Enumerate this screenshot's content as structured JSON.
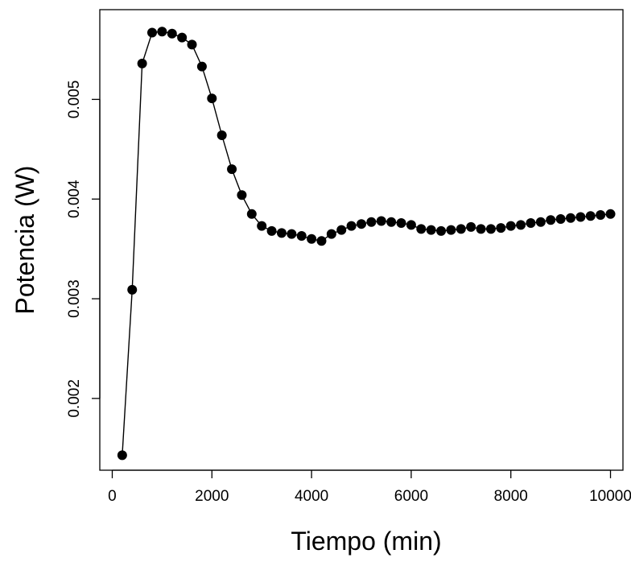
{
  "chart_data": {
    "type": "line",
    "title": "",
    "xlabel": "Tiempo (min)",
    "ylabel": "Potencia (W)",
    "xlim": [
      -250,
      10250
    ],
    "ylim": [
      0.00128,
      0.0059
    ],
    "x_ticks": [
      0,
      2000,
      4000,
      6000,
      8000,
      10000
    ],
    "x_tick_labels": [
      "0",
      "2000",
      "4000",
      "6000",
      "8000",
      "10000"
    ],
    "y_ticks": [
      0.002,
      0.003,
      0.004,
      0.005
    ],
    "y_tick_labels": [
      "0.002",
      "0.003",
      "0.004",
      "0.005"
    ],
    "grid": false,
    "legend": "none",
    "marker": "filled-circle",
    "line_color": "#000000",
    "marker_color": "#000000",
    "series": [
      {
        "x": [
          200,
          400,
          600,
          800,
          1000,
          1200,
          1400,
          1600,
          1800,
          2000,
          2200,
          2400,
          2600,
          2800,
          3000,
          3200,
          3400,
          3600,
          3800,
          4000,
          4200,
          4400,
          4600,
          4800,
          5000,
          5200,
          5400,
          5600,
          5800,
          6000,
          6200,
          6400,
          6600,
          6800,
          7000,
          7200,
          7400,
          7600,
          7800,
          8000,
          8200,
          8400,
          8600,
          8800,
          9000,
          9200,
          9400,
          9600,
          9800,
          10000
        ],
        "y": [
          0.00143,
          0.00309,
          0.00536,
          0.00567,
          0.00568,
          0.00566,
          0.00562,
          0.00555,
          0.00533,
          0.00501,
          0.00464,
          0.0043,
          0.00404,
          0.00385,
          0.00373,
          0.00368,
          0.00366,
          0.00365,
          0.00363,
          0.0036,
          0.00358,
          0.00365,
          0.00369,
          0.00373,
          0.00375,
          0.00377,
          0.00378,
          0.00377,
          0.00376,
          0.00374,
          0.0037,
          0.00369,
          0.00368,
          0.00369,
          0.0037,
          0.00372,
          0.0037,
          0.0037,
          0.00371,
          0.00373,
          0.00374,
          0.00376,
          0.00377,
          0.00379,
          0.0038,
          0.00381,
          0.00382,
          0.00383,
          0.00384,
          0.00385
        ]
      }
    ]
  }
}
